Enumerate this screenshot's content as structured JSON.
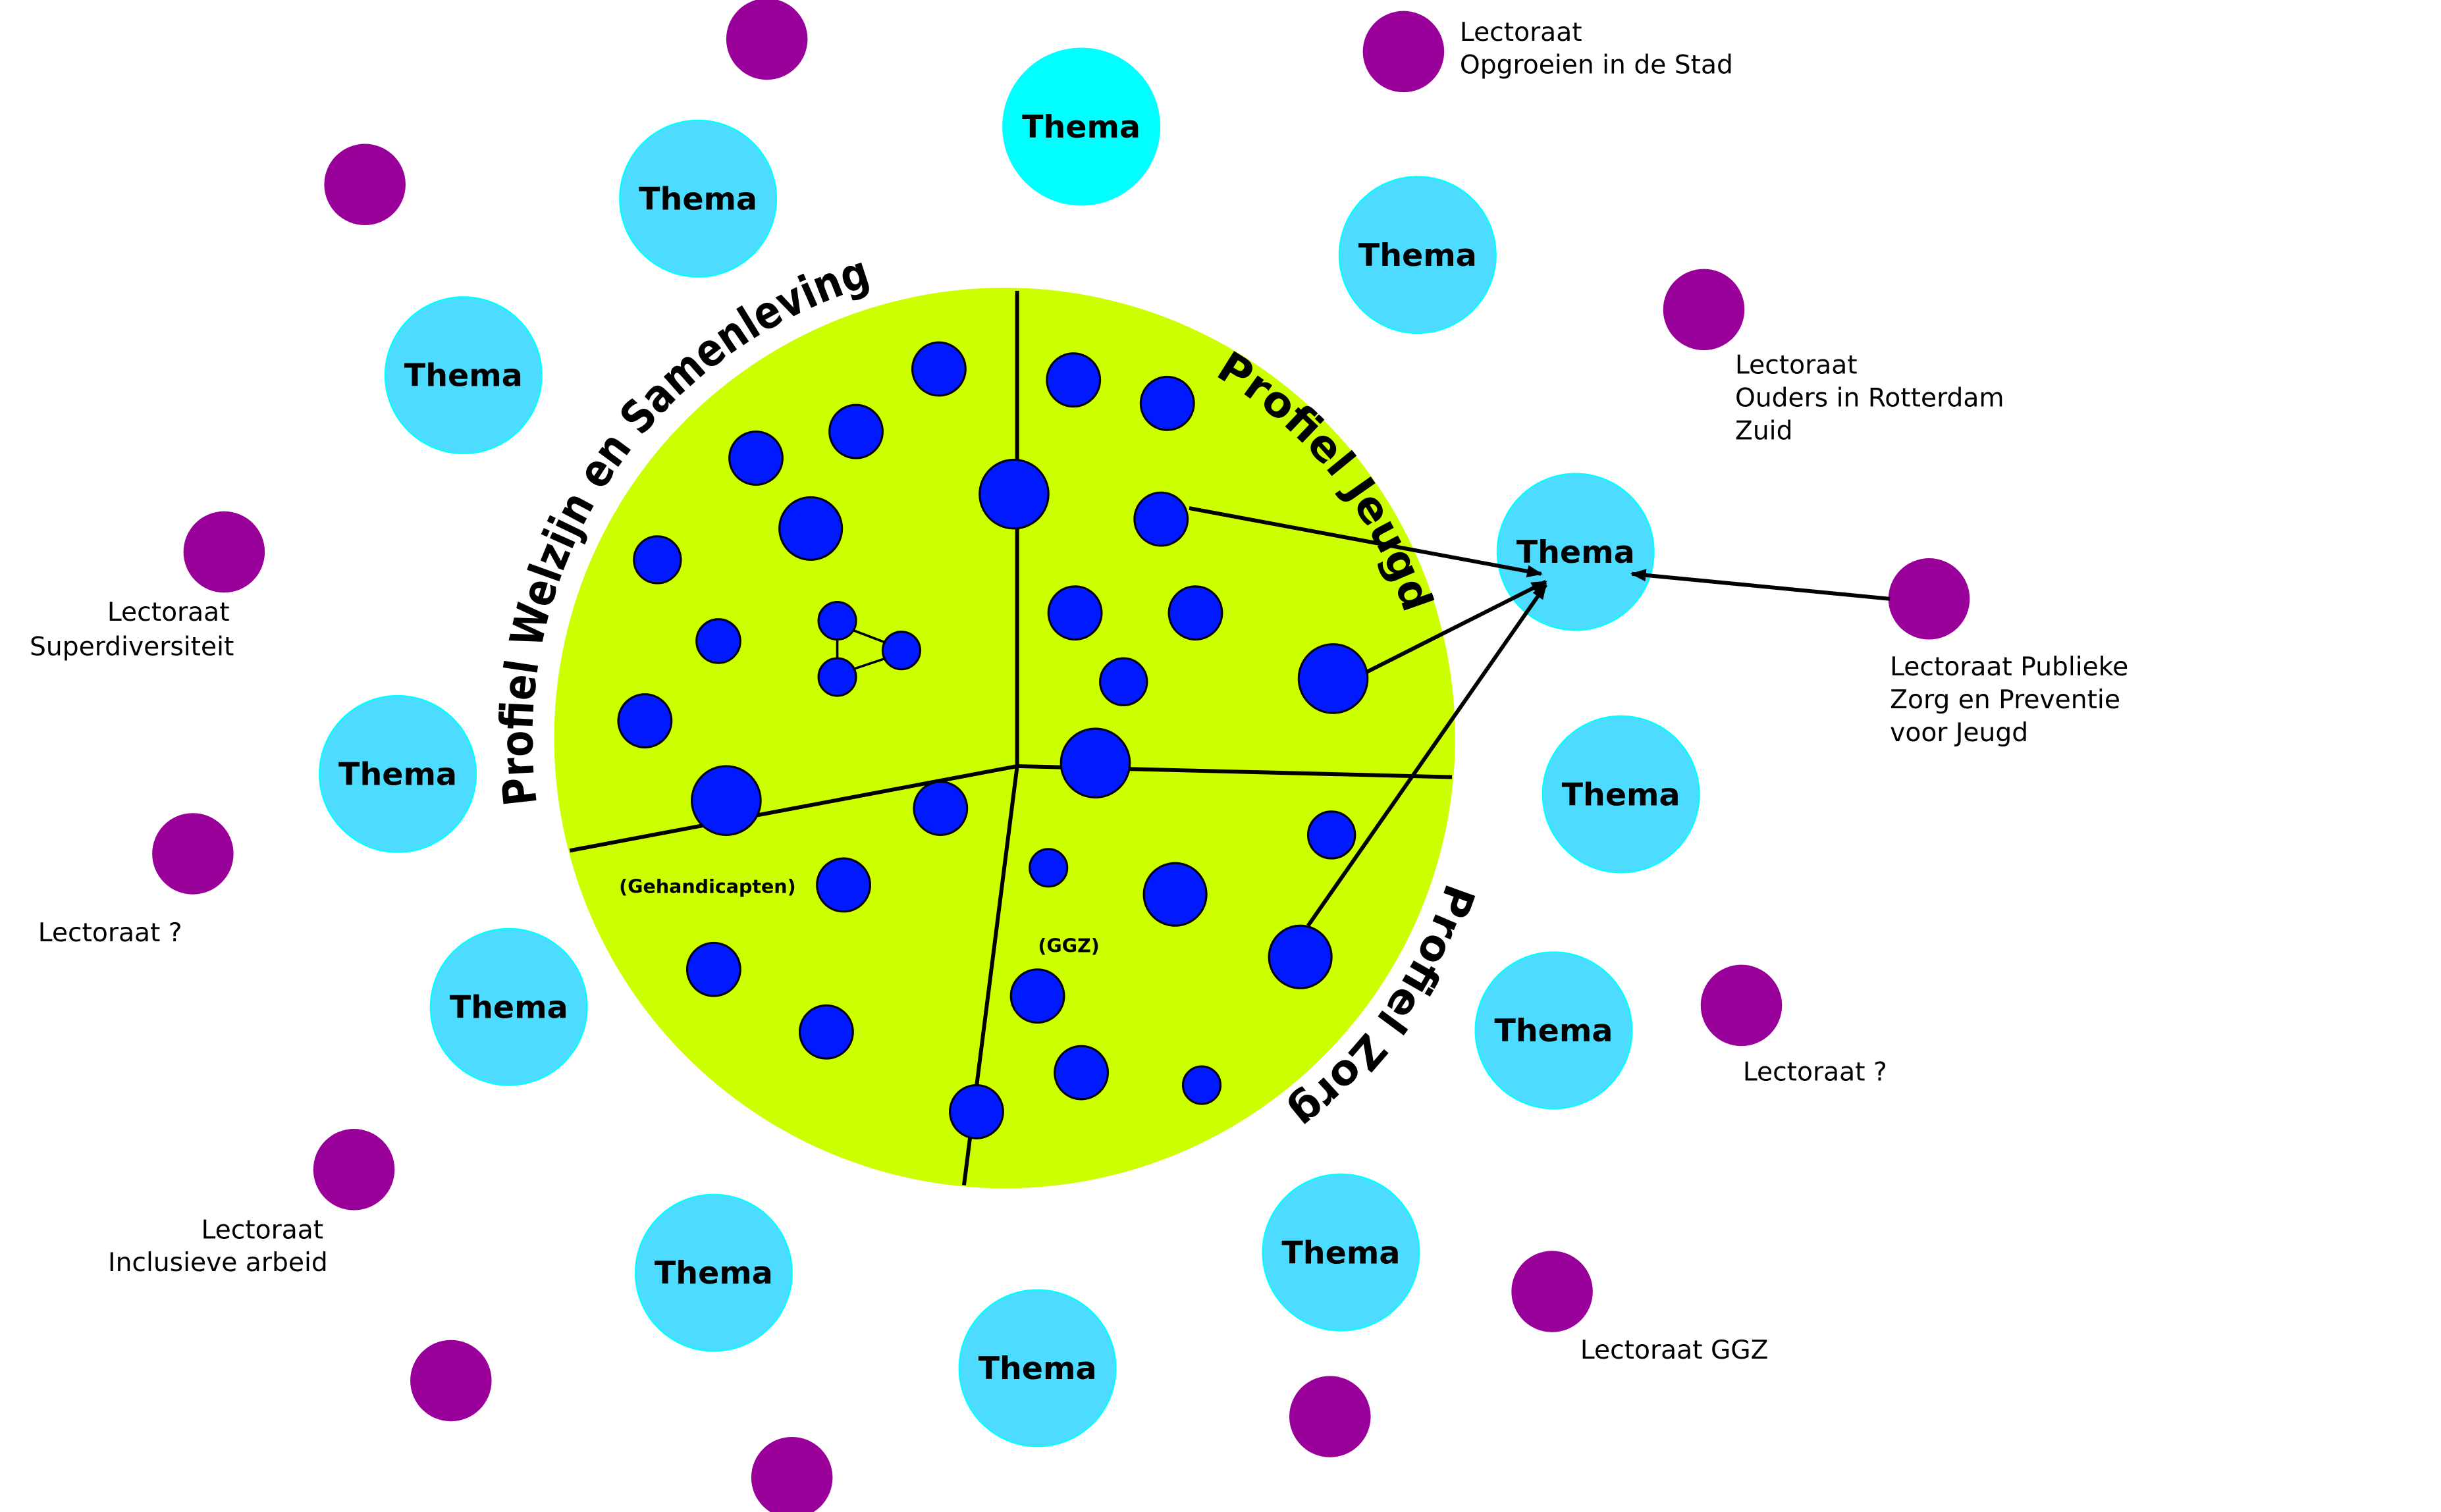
{
  "colors": {
    "domain_circle": "#ccff00",
    "project_dot": "#0019ff",
    "thema": "#4ddbff",
    "thema_highlight": "#00ffff",
    "lectoraat": "#990099",
    "lines": "#000000"
  },
  "profiles": {
    "welzijn": "Profiel Welzijn en Samenleving",
    "jeugd": "Profiel Jeugd",
    "zorg": "Profiel Zorg"
  },
  "sub_labels": {
    "gehandicapten": "(Gehandicapten)",
    "ggz": "(GGZ)"
  },
  "thema_label": "Thema",
  "lectoraten": {
    "opgroeien": [
      "Lectoraat",
      "Opgroeien in de Stad"
    ],
    "ouders": [
      "Lectoraat",
      "Ouders in Rotterdam",
      "Zuid"
    ],
    "superdiversiteit": [
      "Lectoraat",
      "Superdiversiteit"
    ],
    "publieke_zorg": [
      "Lectoraat Publieke",
      "Zorg en Preventie",
      "voor Jeugd"
    ],
    "unknown_left": "Lectoraat ?",
    "unknown_right": "Lectoraat ?",
    "inclusieve_arbeid": [
      "Lectoraat",
      "Inclusieve arbeid"
    ],
    "ggz": "Lectoraat GGZ"
  }
}
